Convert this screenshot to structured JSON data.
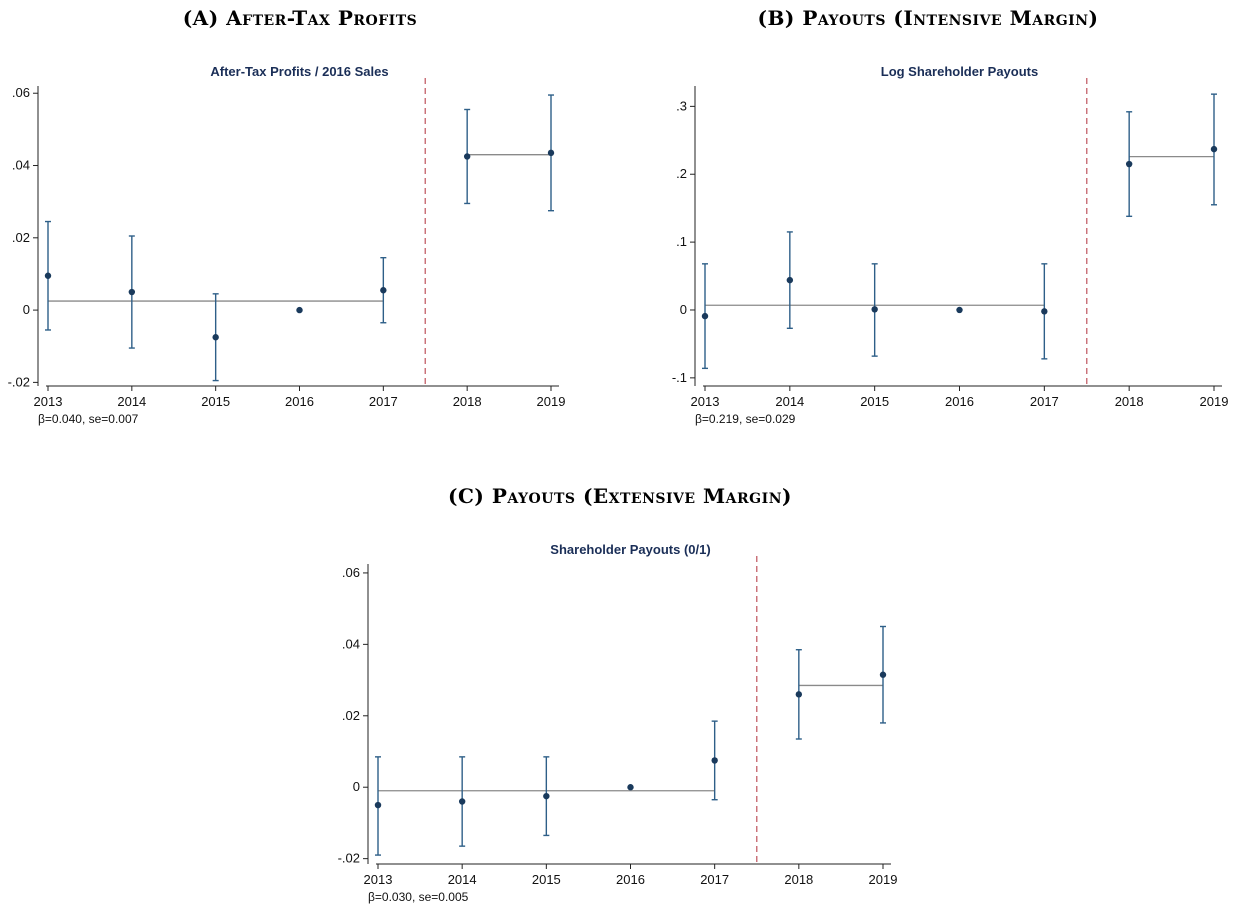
{
  "headings": {
    "a": {
      "label": "(A) ",
      "text": "After-Tax Profits"
    },
    "b": {
      "label": "(B) ",
      "text": "Payouts (Intensive Margin)"
    },
    "c": {
      "label": "(C) ",
      "text": "Payouts (Extensive Margin)"
    }
  },
  "colors": {
    "points": "#1a3a5c",
    "error_bars": "#2e5f88",
    "mean_lines": "#8a8a8a",
    "reform_line": "#c76b73",
    "title": "#1a2e57"
  },
  "chart_data": [
    {
      "type": "scatter",
      "title": "After-Tax Profits / 2016 Sales",
      "note": "β=0.040, se=0.007",
      "x": [
        2013,
        2014,
        2015,
        2016,
        2017,
        2018,
        2019
      ],
      "x_tick_labels": [
        "2013",
        "2014",
        "2015",
        "2016",
        "2017",
        "2018",
        "2019"
      ],
      "y": [
        0.0095,
        0.005,
        -0.0075,
        0.0,
        0.0055,
        0.0425,
        0.0435
      ],
      "ci_low": [
        -0.0055,
        -0.0105,
        -0.0195,
        null,
        -0.0035,
        0.0295,
        0.0275
      ],
      "ci_high": [
        0.0245,
        0.0205,
        0.0045,
        null,
        0.0145,
        0.0555,
        0.0595
      ],
      "ylim": [
        -0.021,
        0.062
      ],
      "y_ticks": [
        -0.02,
        0,
        0.02,
        0.04,
        0.06
      ],
      "y_tick_labels": [
        "-.02",
        "0",
        ".02",
        ".04",
        ".06"
      ],
      "reform_line_x": 2017.5,
      "pre_mean": {
        "x_from": 2013,
        "x_to": 2017,
        "y": 0.0025
      },
      "post_mean": {
        "x_from": 2018,
        "x_to": 2019,
        "y": 0.043
      }
    },
    {
      "type": "scatter",
      "title": "Log Shareholder Payouts",
      "note": "β=0.219, se=0.029",
      "x": [
        2013,
        2014,
        2015,
        2016,
        2017,
        2018,
        2019
      ],
      "x_tick_labels": [
        "2013",
        "2014",
        "2015",
        "2016",
        "2017",
        "2018",
        "2019"
      ],
      "y": [
        -0.009,
        0.044,
        0.001,
        0.0,
        -0.002,
        0.215,
        0.237
      ],
      "ci_low": [
        -0.086,
        -0.027,
        -0.068,
        null,
        -0.072,
        0.138,
        0.155
      ],
      "ci_high": [
        0.068,
        0.115,
        0.068,
        null,
        0.068,
        0.292,
        0.318
      ],
      "ylim": [
        -0.112,
        0.33
      ],
      "y_ticks": [
        -0.1,
        0,
        0.1,
        0.2,
        0.3
      ],
      "y_tick_labels": [
        "-.1",
        "0",
        ".1",
        ".2",
        ".3"
      ],
      "reform_line_x": 2017.5,
      "pre_mean": {
        "x_from": 2013,
        "x_to": 2017,
        "y": 0.007
      },
      "post_mean": {
        "x_from": 2018,
        "x_to": 2019,
        "y": 0.226
      }
    },
    {
      "type": "scatter",
      "title": "Shareholder Payouts (0/1)",
      "note": "β=0.030, se=0.005",
      "x": [
        2013,
        2014,
        2015,
        2016,
        2017,
        2018,
        2019
      ],
      "x_tick_labels": [
        "2013",
        "2014",
        "2015",
        "2016",
        "2017",
        "2018",
        "2019"
      ],
      "y": [
        -0.005,
        -0.004,
        -0.0025,
        0.0,
        0.0075,
        0.026,
        0.0315
      ],
      "ci_low": [
        -0.019,
        -0.0165,
        -0.0135,
        null,
        -0.0035,
        0.0135,
        0.018
      ],
      "ci_high": [
        0.0085,
        0.0085,
        0.0085,
        null,
        0.0185,
        0.0385,
        0.045
      ],
      "ylim": [
        -0.0215,
        0.0625
      ],
      "y_ticks": [
        -0.02,
        0,
        0.02,
        0.04,
        0.06
      ],
      "y_tick_labels": [
        "-.02",
        "0",
        ".02",
        ".04",
        ".06"
      ],
      "reform_line_x": 2017.5,
      "pre_mean": {
        "x_from": 2013,
        "x_to": 2017,
        "y": -0.001
      },
      "post_mean": {
        "x_from": 2018,
        "x_to": 2019,
        "y": 0.0285
      }
    }
  ]
}
